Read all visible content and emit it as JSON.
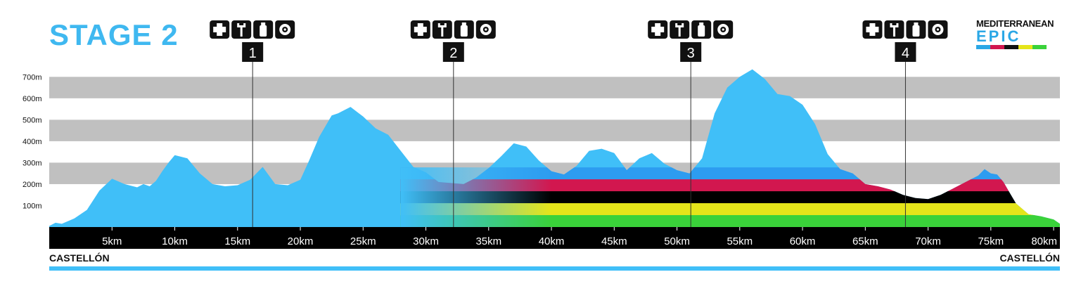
{
  "title": "STAGE 2",
  "logo": {
    "top_text": "MEDITERRANEAN",
    "bottom_text": "EPIC"
  },
  "start_label": "CASTELLÓN",
  "end_label": "CASTELLÓN",
  "colors": {
    "profile": "#40bff8",
    "band": "#c0c0c0",
    "axis_bar": "#000000",
    "footer_line": "#40bff8",
    "title": "#3fb8f0",
    "rainbow": [
      "#2d9cf0",
      "#d2174f",
      "#000000",
      "#e5e51a",
      "#3ad23a"
    ]
  },
  "feed_zone_icons": [
    "medical-cross-icon",
    "wrench-icon",
    "bottle-icon",
    "wheel-icon"
  ],
  "chart_data": {
    "type": "area",
    "xlabel": "",
    "ylabel": "",
    "xlim": [
      0,
      80.5
    ],
    "ylim": [
      0,
      760
    ],
    "y_ticks": [
      100,
      200,
      300,
      400,
      500,
      600,
      700
    ],
    "y_tick_labels": [
      "100m",
      "200m",
      "300m",
      "400m",
      "500m",
      "600m",
      "700m"
    ],
    "x_ticks": [
      5,
      10,
      15,
      20,
      25,
      30,
      35,
      40,
      45,
      50,
      55,
      60,
      65,
      70,
      75,
      80
    ],
    "x_tick_labels": [
      "5km",
      "10km",
      "15km",
      "20km",
      "25km",
      "30km",
      "35km",
      "40km",
      "45km",
      "50km",
      "55km",
      "60km",
      "65km",
      "70km",
      "75km",
      "80km"
    ],
    "checkpoints": [
      {
        "label": "1",
        "km": 16.2
      },
      {
        "label": "2",
        "km": 32.2
      },
      {
        "label": "3",
        "km": 51.1
      },
      {
        "label": "4",
        "km": 68.2
      }
    ],
    "series": [
      {
        "x": [
          0,
          0.5,
          1,
          2,
          3,
          4,
          5,
          6,
          7,
          7.5,
          8,
          8.5,
          9,
          9.5,
          10,
          11,
          12,
          13,
          14,
          15,
          16,
          17,
          18,
          19,
          20,
          20.7,
          21.5,
          22.5,
          23,
          24,
          25,
          26,
          27,
          28,
          29,
          30,
          31,
          32,
          33,
          34,
          35,
          36,
          37,
          38,
          39,
          40,
          41,
          42,
          43,
          44,
          45,
          46,
          47,
          48,
          49,
          50,
          51,
          52,
          53,
          54,
          55,
          56,
          57,
          58,
          59,
          60,
          61,
          62,
          63,
          64,
          65,
          66,
          67,
          68,
          69,
          70,
          71,
          72,
          73,
          74,
          74.5,
          75,
          75.5,
          76,
          76.5,
          77,
          78,
          79,
          80,
          80.5
        ],
        "y": [
          5,
          20,
          15,
          40,
          80,
          170,
          225,
          200,
          185,
          200,
          190,
          215,
          260,
          300,
          335,
          320,
          250,
          200,
          190,
          195,
          220,
          280,
          200,
          195,
          220,
          310,
          420,
          520,
          530,
          560,
          515,
          460,
          430,
          355,
          280,
          255,
          210,
          205,
          200,
          230,
          275,
          330,
          390,
          375,
          310,
          260,
          245,
          285,
          355,
          365,
          345,
          265,
          320,
          345,
          295,
          265,
          250,
          320,
          530,
          650,
          700,
          735,
          690,
          620,
          610,
          570,
          480,
          340,
          270,
          250,
          200,
          190,
          175,
          150,
          135,
          130,
          150,
          180,
          210,
          240,
          270,
          250,
          245,
          210,
          160,
          110,
          60,
          50,
          35,
          15
        ]
      }
    ]
  }
}
